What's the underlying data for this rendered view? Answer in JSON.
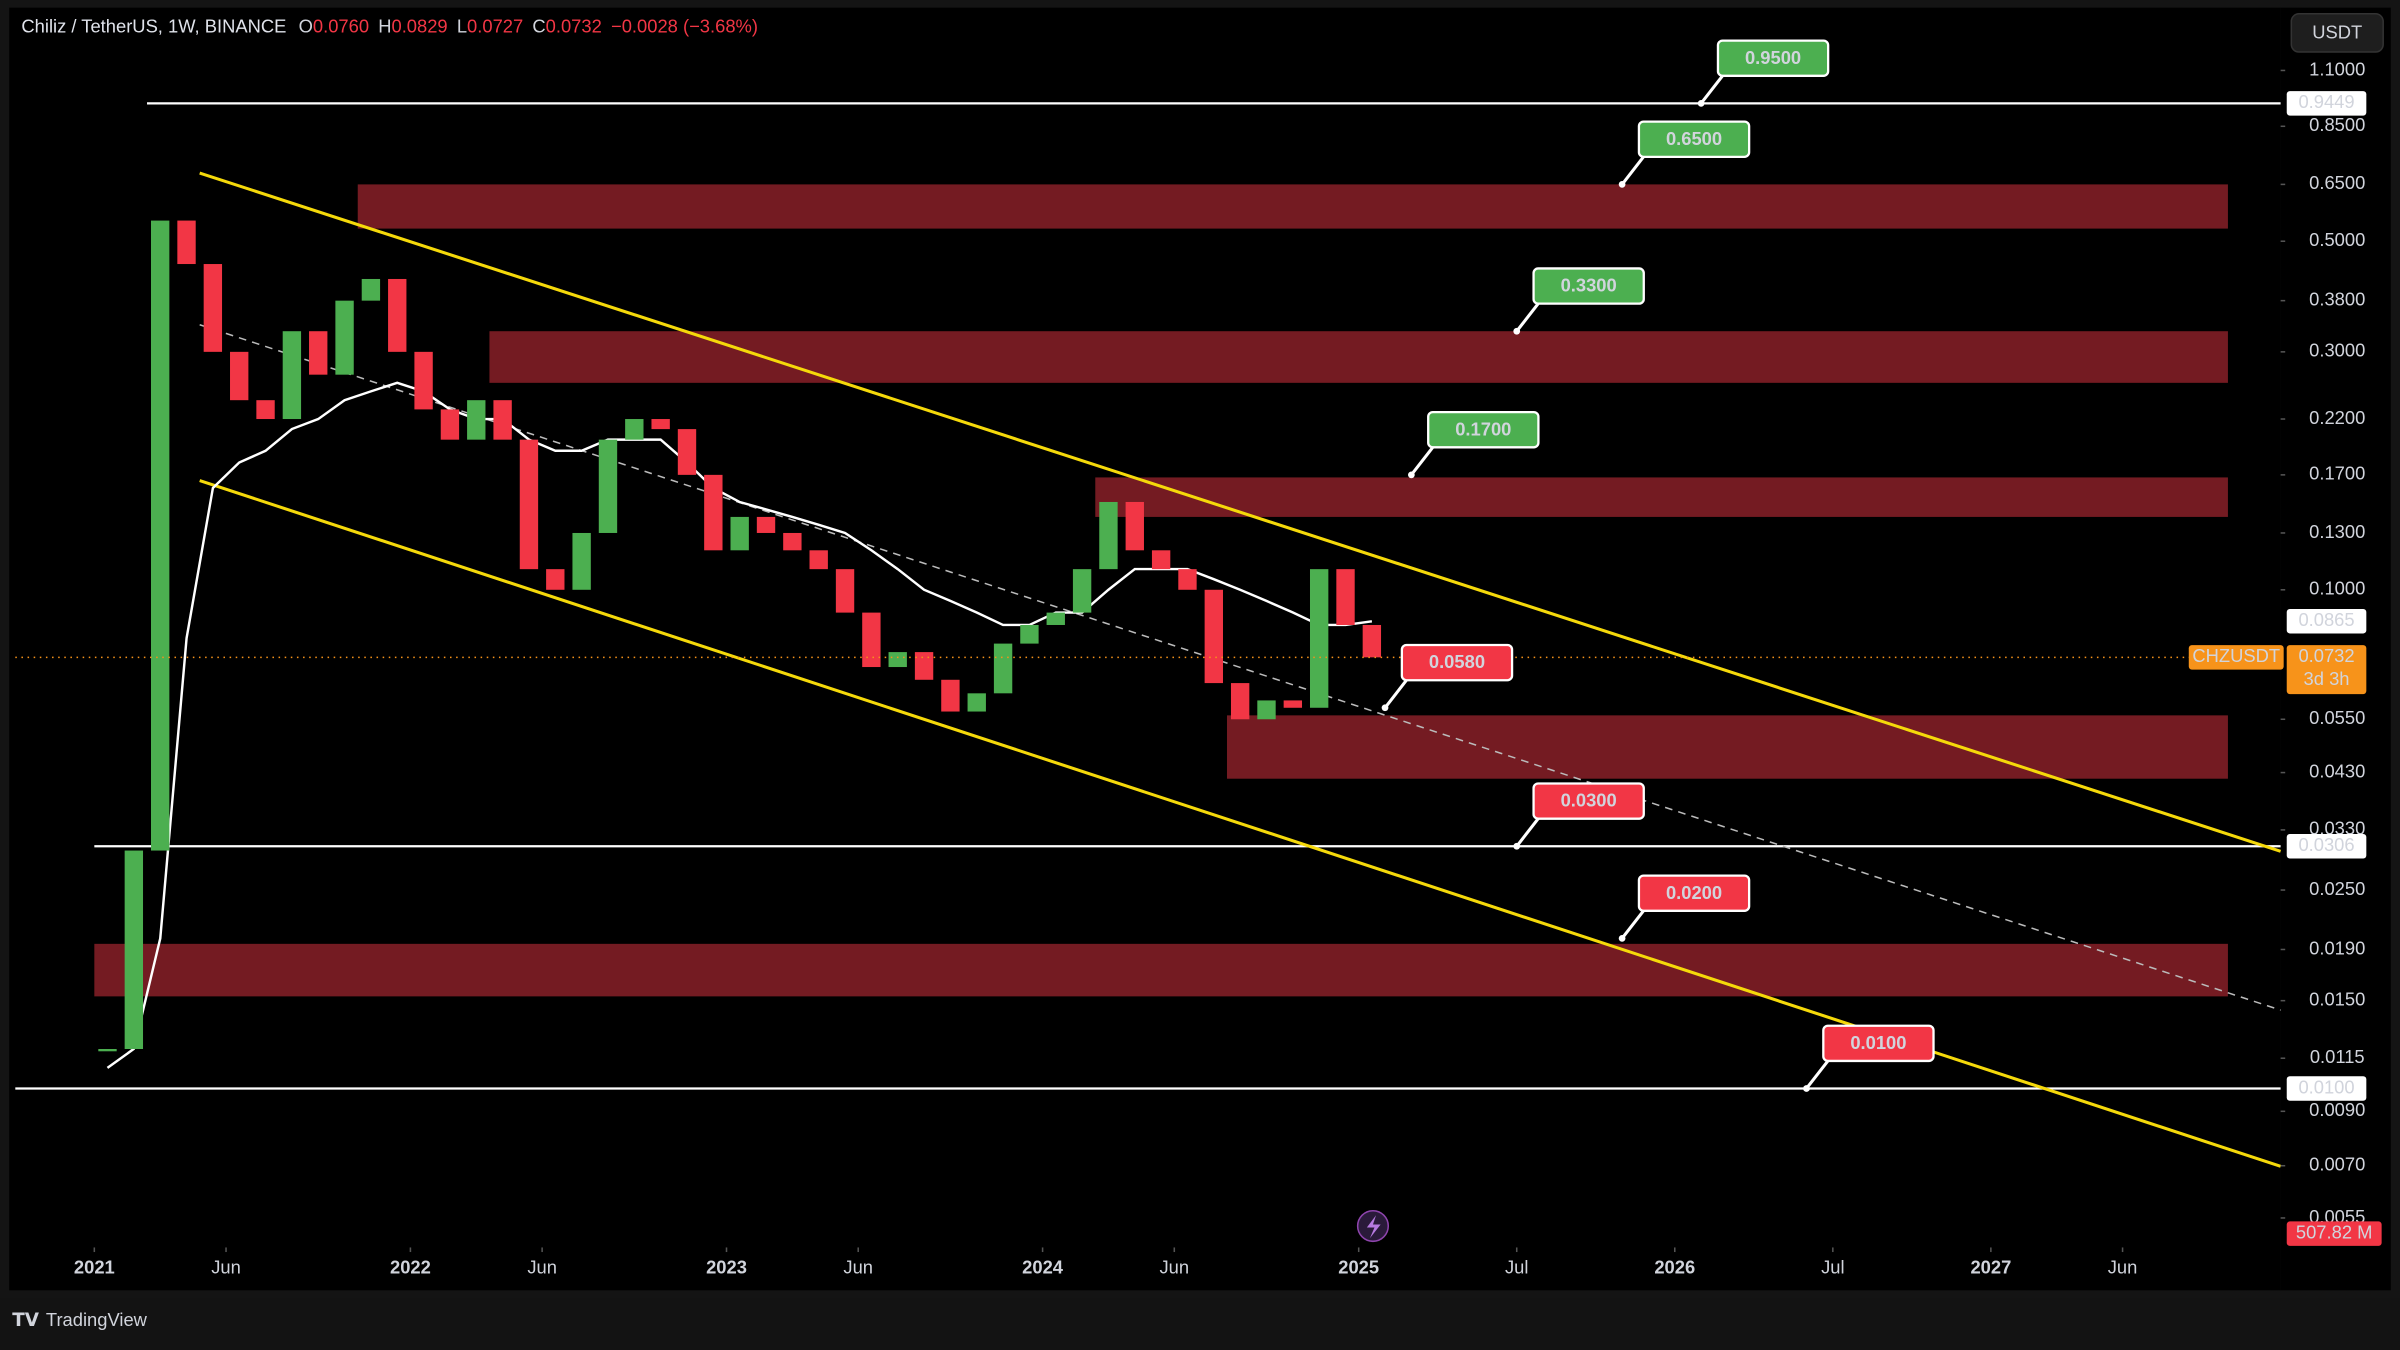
{
  "header": {
    "symbol": "Chiliz / TetherUS, 1W, BINANCE",
    "ohlc": [
      {
        "key": "O",
        "value": "0.0760"
      },
      {
        "key": "H",
        "value": "0.0829"
      },
      {
        "key": "L",
        "value": "0.0727"
      },
      {
        "key": "C",
        "value": "0.0732"
      }
    ],
    "change": "−0.0028 (−3.68%)"
  },
  "currency_button": "USDT",
  "chart_data": {
    "type": "candlestick",
    "log_scale": true,
    "xlim": [
      "2020-10",
      "2027-12"
    ],
    "ylim": [
      0.0048,
      1.47
    ],
    "x": [
      "2021-01",
      "2021-02",
      "2021-03",
      "2021-04",
      "2021-05",
      "2021-06",
      "2021-07",
      "2021-08",
      "2021-09",
      "2021-10",
      "2021-11",
      "2021-12",
      "2022-01",
      "2022-02",
      "2022-03",
      "2022-04",
      "2022-05",
      "2022-06",
      "2022-07",
      "2022-08",
      "2022-09",
      "2022-10",
      "2022-11",
      "2022-12",
      "2023-01",
      "2023-02",
      "2023-03",
      "2023-04",
      "2023-05",
      "2023-06",
      "2023-07",
      "2023-08",
      "2023-09",
      "2023-10",
      "2023-11",
      "2023-12",
      "2024-01",
      "2024-02",
      "2024-03",
      "2024-04",
      "2024-05",
      "2024-06",
      "2024-07",
      "2024-08",
      "2024-09",
      "2024-10",
      "2024-11",
      "2024-12",
      "2025-01"
    ],
    "series": [
      {
        "name": "CHZUSDT",
        "up_color": "#4caf50",
        "down_color": "#f23645",
        "values": [
          0.012,
          0.03,
          0.55,
          0.45,
          0.3,
          0.24,
          0.22,
          0.33,
          0.27,
          0.38,
          0.42,
          0.3,
          0.23,
          0.2,
          0.24,
          0.2,
          0.11,
          0.1,
          0.13,
          0.2,
          0.22,
          0.21,
          0.17,
          0.12,
          0.14,
          0.13,
          0.12,
          0.11,
          0.09,
          0.07,
          0.075,
          0.066,
          0.057,
          0.062,
          0.078,
          0.085,
          0.09,
          0.11,
          0.15,
          0.12,
          0.11,
          0.1,
          0.065,
          0.055,
          0.06,
          0.058,
          0.11,
          0.085,
          0.0732
        ]
      }
    ],
    "ma_values": [
      0.011,
      0.012,
      0.02,
      0.08,
      0.16,
      0.18,
      0.19,
      0.21,
      0.22,
      0.24,
      0.25,
      0.26,
      0.25,
      0.23,
      0.22,
      0.22,
      0.2,
      0.19,
      0.19,
      0.2,
      0.2,
      0.2,
      0.18,
      0.16,
      0.15,
      0.145,
      0.14,
      0.135,
      0.13,
      0.12,
      0.11,
      0.1,
      0.095,
      0.09,
      0.085,
      0.085,
      0.09,
      0.09,
      0.1,
      0.11,
      0.11,
      0.11,
      0.105,
      0.1,
      0.095,
      0.09,
      0.085,
      0.085,
      0.0865
    ],
    "ma_color": "#ffffff",
    "yticks": [
      {
        "value": 1.1,
        "label": "1.1000"
      },
      {
        "value": 0.85,
        "label": "0.8500"
      },
      {
        "value": 0.65,
        "label": "0.6500"
      },
      {
        "value": 0.5,
        "label": "0.5000"
      },
      {
        "value": 0.38,
        "label": "0.3800"
      },
      {
        "value": 0.3,
        "label": "0.3000"
      },
      {
        "value": 0.22,
        "label": "0.2200"
      },
      {
        "value": 0.17,
        "label": "0.1700"
      },
      {
        "value": 0.13,
        "label": "0.1300"
      },
      {
        "value": 0.1,
        "label": "0.1000"
      },
      {
        "value": 0.055,
        "label": "0.0550"
      },
      {
        "value": 0.043,
        "label": "0.0430"
      },
      {
        "value": 0.033,
        "label": "0.0330"
      },
      {
        "value": 0.025,
        "label": "0.0250"
      },
      {
        "value": 0.019,
        "label": "0.0190"
      },
      {
        "value": 0.015,
        "label": "0.0150"
      },
      {
        "value": 0.0115,
        "label": "0.0115"
      },
      {
        "value": 0.009,
        "label": "0.0090"
      },
      {
        "value": 0.007,
        "label": "0.0070"
      },
      {
        "value": 0.0055,
        "label": "0.0055"
      }
    ],
    "xticks": [
      {
        "value": "2021-01",
        "label": "2021"
      },
      {
        "value": "2021-06",
        "label": "Jun"
      },
      {
        "value": "2022-01",
        "label": "2022"
      },
      {
        "value": "2022-06",
        "label": "Jun"
      },
      {
        "value": "2023-01",
        "label": "2023"
      },
      {
        "value": "2023-06",
        "label": "Jun"
      },
      {
        "value": "2024-01",
        "label": "2024"
      },
      {
        "value": "2024-06",
        "label": "Jun"
      },
      {
        "value": "2025-01",
        "label": "2025"
      },
      {
        "value": "2025-07",
        "label": "Jul"
      },
      {
        "value": "2026-01",
        "label": "2026"
      },
      {
        "value": "2026-07",
        "label": "Jul"
      },
      {
        "value": "2027-01",
        "label": "2027"
      },
      {
        "value": "2027-06",
        "label": "Jun"
      }
    ],
    "levels": [
      {
        "value": 0.9449,
        "label": "0.9449",
        "start": "2021-03"
      },
      {
        "value": 0.0306,
        "label": "0.0306",
        "start": "2021-01"
      },
      {
        "value": 0.01,
        "label": "0.0100",
        "start": "2020-10"
      }
    ],
    "zones": [
      {
        "top": 0.65,
        "bottom": 0.53,
        "start": "2021-11",
        "end": "2027-10"
      },
      {
        "top": 0.33,
        "bottom": 0.26,
        "start": "2022-04",
        "end": "2027-10"
      },
      {
        "top": 0.168,
        "bottom": 0.14,
        "start": "2024-03",
        "end": "2027-10"
      },
      {
        "top": 0.056,
        "bottom": 0.0418,
        "start": "2024-08",
        "end": "2027-10"
      },
      {
        "top": 0.0195,
        "bottom": 0.0153,
        "start": "2021-01",
        "end": "2027-10"
      }
    ],
    "zone_color": "#7a1c24",
    "channel": {
      "color": "#f5d90a",
      "upper": [
        [
          "2021-05",
          0.685
        ],
        [
          "2027-12",
          0.0299
        ]
      ],
      "lower": [
        [
          "2021-05",
          0.1656
        ],
        [
          "2027-12",
          0.00698
        ]
      ],
      "middle": [
        [
          "2021-05",
          0.34
        ],
        [
          "2027-12",
          0.01436
        ]
      ]
    },
    "annotations": [
      {
        "label": "0.9500",
        "value": 0.9449,
        "at": "2026-02",
        "color": "#4caf50"
      },
      {
        "label": "0.6500",
        "value": 0.65,
        "at": "2025-11",
        "color": "#4caf50"
      },
      {
        "label": "0.3300",
        "value": 0.33,
        "at": "2025-07",
        "color": "#4caf50"
      },
      {
        "label": "0.1700",
        "value": 0.17,
        "at": "2025-03",
        "color": "#4caf50"
      },
      {
        "label": "0.0580",
        "value": 0.058,
        "at": "2025-02",
        "color": "#f23645"
      },
      {
        "label": "0.0300",
        "value": 0.0306,
        "at": "2025-07",
        "color": "#f23645"
      },
      {
        "label": "0.0200",
        "value": 0.02,
        "at": "2025-11",
        "color": "#f23645"
      },
      {
        "label": "0.0100",
        "value": 0.01,
        "at": "2026-06",
        "color": "#f23645"
      }
    ],
    "ma_last": {
      "value": 0.0865,
      "label": "0.0865"
    },
    "last_price": {
      "symbol": "CHZUSDT",
      "value": 0.0732,
      "label": "0.0732",
      "countdown": "3d 3h",
      "color": "#f7931a"
    },
    "volume_label": "507.82 M"
  },
  "footer": {
    "brand": "TradingView"
  }
}
